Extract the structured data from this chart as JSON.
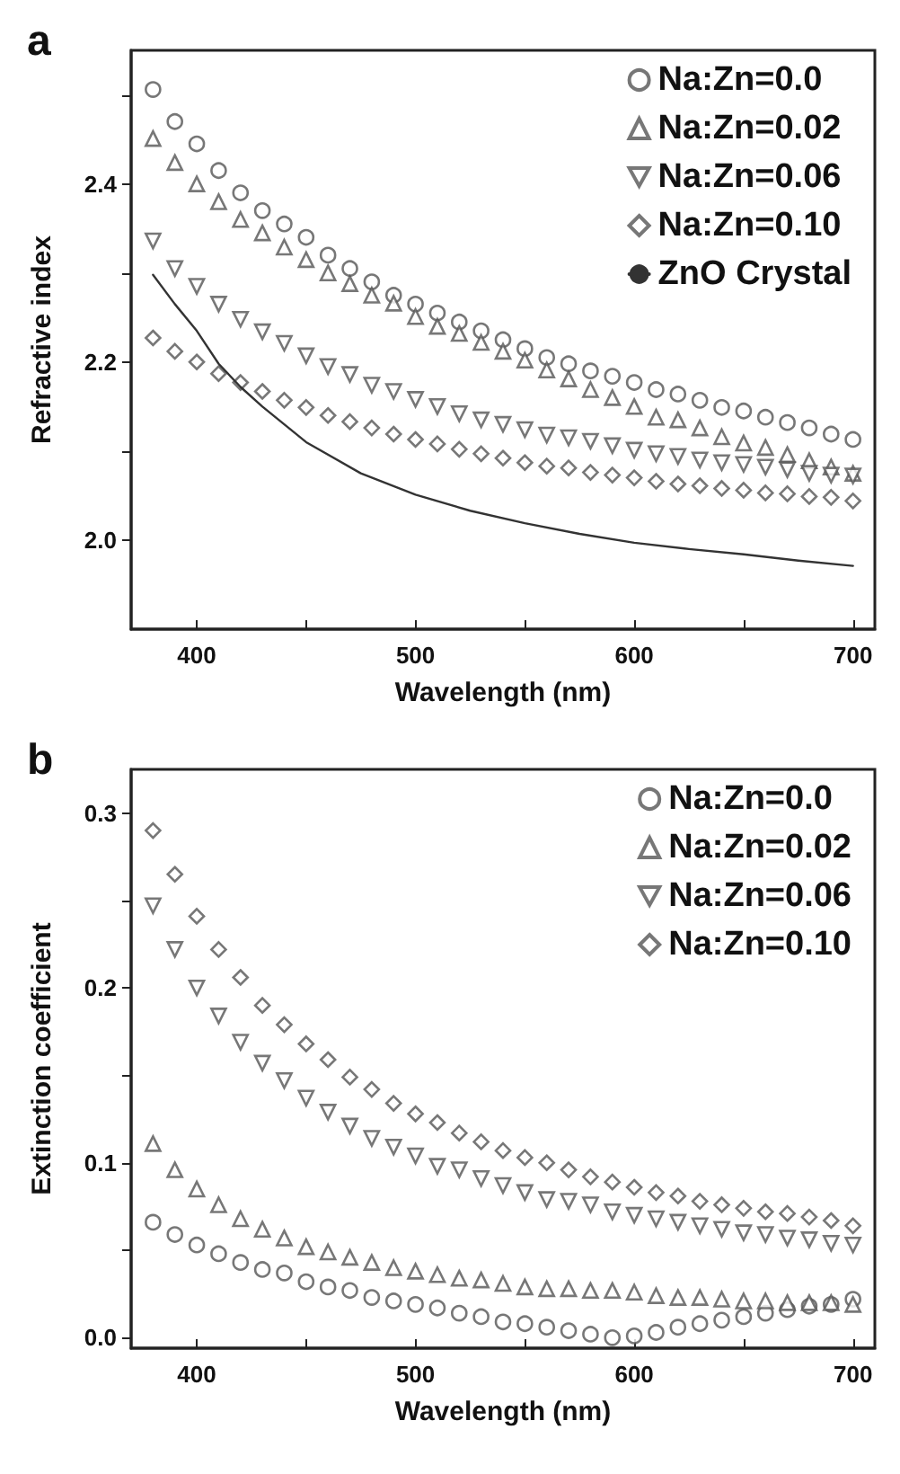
{
  "chart_data": [
    {
      "type": "scatter",
      "title": "a",
      "xlabel": "Wavelength (nm)",
      "ylabel": "Refractive index",
      "legend": "top right",
      "grid": false,
      "x": [
        380,
        390,
        400,
        410,
        420,
        430,
        440,
        450,
        460,
        470,
        480,
        490,
        500,
        510,
        520,
        530,
        540,
        550,
        560,
        570,
        580,
        590,
        600,
        610,
        620,
        630,
        640,
        650,
        660,
        670,
        680,
        690,
        700
      ],
      "xlim": [
        370,
        710
      ],
      "xticks": [
        400,
        {
          "value": 450,
          "label": null
        },
        500,
        {
          "value": 550,
          "label": null
        },
        600,
        {
          "value": 650,
          "label": null
        },
        700
      ],
      "ylim": [
        1.9,
        2.55
      ],
      "yticks": [
        {
          "value": 2,
          "label": "2.0"
        },
        {
          "value": 2.1,
          "label": null
        },
        2.2,
        {
          "value": 2.3,
          "label": null
        },
        2.4,
        {
          "value": 2.5,
          "label": null
        }
      ],
      "series": [
        {
          "name": "Na:Zn=0.0",
          "color": "#555555",
          "marker": "circle",
          "values": [
            2.506,
            2.47,
            2.445,
            2.415,
            2.39,
            2.37,
            2.355,
            2.34,
            2.32,
            2.305,
            2.29,
            2.275,
            2.265,
            2.255,
            2.245,
            2.235,
            2.225,
            2.215,
            2.205,
            2.198,
            2.19,
            2.184,
            2.177,
            2.169,
            2.164,
            2.157,
            2.149,
            2.145,
            2.138,
            2.132,
            2.126,
            2.119,
            2.113
          ]
        },
        {
          "name": "Na:Zn=0.02",
          "color": "#555555",
          "marker": "triangle",
          "values": [
            2.451,
            2.424,
            2.4,
            2.38,
            2.36,
            2.345,
            2.329,
            2.315,
            2.3,
            2.288,
            2.275,
            2.266,
            2.251,
            2.24,
            2.232,
            2.222,
            2.212,
            2.202,
            2.191,
            2.181,
            2.169,
            2.16,
            2.15,
            2.138,
            2.135,
            2.126,
            2.116,
            2.109,
            2.104,
            2.096,
            2.089,
            2.082,
            2.075
          ]
        },
        {
          "name": "Na:Zn=0.06",
          "color": "#555555",
          "marker": "triangle-down",
          "values": [
            2.336,
            2.305,
            2.285,
            2.265,
            2.248,
            2.234,
            2.221,
            2.207,
            2.195,
            2.186,
            2.174,
            2.167,
            2.158,
            2.15,
            2.142,
            2.135,
            2.13,
            2.124,
            2.118,
            2.115,
            2.111,
            2.106,
            2.101,
            2.097,
            2.094,
            2.09,
            2.087,
            2.085,
            2.082,
            2.079,
            2.075,
            2.073,
            2.072
          ]
        },
        {
          "name": "Na:Zn=0.10",
          "color": "#555555",
          "marker": "diamond",
          "values": [
            2.227,
            2.212,
            2.2,
            2.187,
            2.177,
            2.167,
            2.157,
            2.149,
            2.14,
            2.133,
            2.126,
            2.119,
            2.113,
            2.108,
            2.102,
            2.097,
            2.092,
            2.087,
            2.083,
            2.081,
            2.076,
            2.073,
            2.07,
            2.066,
            2.063,
            2.061,
            2.058,
            2.056,
            2.053,
            2.052,
            2.049,
            2.048,
            2.044
          ]
        },
        {
          "name": "ZnO Crystal",
          "type": "line",
          "color": "#333333",
          "marker": "none",
          "line_style": "solid",
          "x": [
            380,
            390,
            400,
            410,
            420,
            430,
            440,
            450,
            475,
            500,
            525,
            550,
            575,
            600,
            625,
            650,
            675,
            700
          ],
          "values": [
            2.298,
            2.265,
            2.235,
            2.198,
            2.172,
            2.15,
            2.13,
            2.11,
            2.075,
            2.051,
            2.033,
            2.019,
            2.007,
            1.997,
            1.99,
            1.984,
            1.977,
            1.971
          ]
        }
      ]
    },
    {
      "type": "scatter",
      "title": "b",
      "xlabel": "Wavelength (nm)",
      "ylabel": "Extinction coefficient",
      "legend": "top right",
      "grid": false,
      "x": [
        380,
        390,
        400,
        410,
        420,
        430,
        440,
        450,
        460,
        470,
        480,
        490,
        500,
        510,
        520,
        530,
        540,
        550,
        560,
        570,
        580,
        590,
        600,
        610,
        620,
        630,
        640,
        650,
        660,
        670,
        680,
        690,
        700
      ],
      "xlim": [
        370,
        710
      ],
      "xticks": [
        400,
        {
          "value": 450,
          "label": null
        },
        500,
        {
          "value": 550,
          "label": null
        },
        600,
        {
          "value": 650,
          "label": null
        },
        700
      ],
      "ylim": [
        -0.006,
        0.325
      ],
      "yticks": [
        {
          "value": 0,
          "label": "0.0"
        },
        {
          "value": 0.05,
          "label": null
        },
        0.1,
        {
          "value": 0.15,
          "label": null
        },
        0.2,
        {
          "value": 0.25,
          "label": null
        },
        0.3
      ],
      "series": [
        {
          "name": "Na:Zn=0.0",
          "color": "#555555",
          "marker": "circle",
          "values": [
            0.066,
            0.059,
            0.053,
            0.048,
            0.043,
            0.039,
            0.037,
            0.032,
            0.029,
            0.027,
            0.023,
            0.021,
            0.019,
            0.017,
            0.014,
            0.012,
            0.009,
            0.008,
            0.006,
            0.004,
            0.002,
            0.0,
            0.001,
            0.003,
            0.006,
            0.008,
            0.01,
            0.012,
            0.014,
            0.016,
            0.018,
            0.019,
            0.022
          ]
        },
        {
          "name": "Na:Zn=0.02",
          "color": "#555555",
          "marker": "triangle",
          "values": [
            0.111,
            0.096,
            0.085,
            0.076,
            0.068,
            0.062,
            0.057,
            0.052,
            0.049,
            0.046,
            0.043,
            0.04,
            0.038,
            0.036,
            0.034,
            0.033,
            0.031,
            0.029,
            0.028,
            0.028,
            0.027,
            0.027,
            0.026,
            0.024,
            0.023,
            0.023,
            0.022,
            0.021,
            0.021,
            0.02,
            0.02,
            0.02,
            0.019
          ]
        },
        {
          "name": "Na:Zn=0.06",
          "color": "#555555",
          "marker": "triangle-down",
          "values": [
            0.247,
            0.222,
            0.2,
            0.184,
            0.169,
            0.157,
            0.147,
            0.137,
            0.129,
            0.121,
            0.114,
            0.109,
            0.104,
            0.098,
            0.096,
            0.091,
            0.087,
            0.083,
            0.079,
            0.078,
            0.076,
            0.072,
            0.07,
            0.068,
            0.066,
            0.064,
            0.062,
            0.06,
            0.059,
            0.057,
            0.056,
            0.054,
            0.053
          ]
        },
        {
          "name": "Na:Zn=0.10",
          "color": "#555555",
          "marker": "diamond",
          "values": [
            0.29,
            0.265,
            0.241,
            0.222,
            0.206,
            0.19,
            0.179,
            0.168,
            0.159,
            0.149,
            0.142,
            0.134,
            0.128,
            0.123,
            0.117,
            0.112,
            0.107,
            0.103,
            0.1,
            0.096,
            0.092,
            0.089,
            0.086,
            0.083,
            0.081,
            0.078,
            0.076,
            0.074,
            0.072,
            0.071,
            0.069,
            0.067,
            0.064
          ]
        }
      ]
    }
  ]
}
